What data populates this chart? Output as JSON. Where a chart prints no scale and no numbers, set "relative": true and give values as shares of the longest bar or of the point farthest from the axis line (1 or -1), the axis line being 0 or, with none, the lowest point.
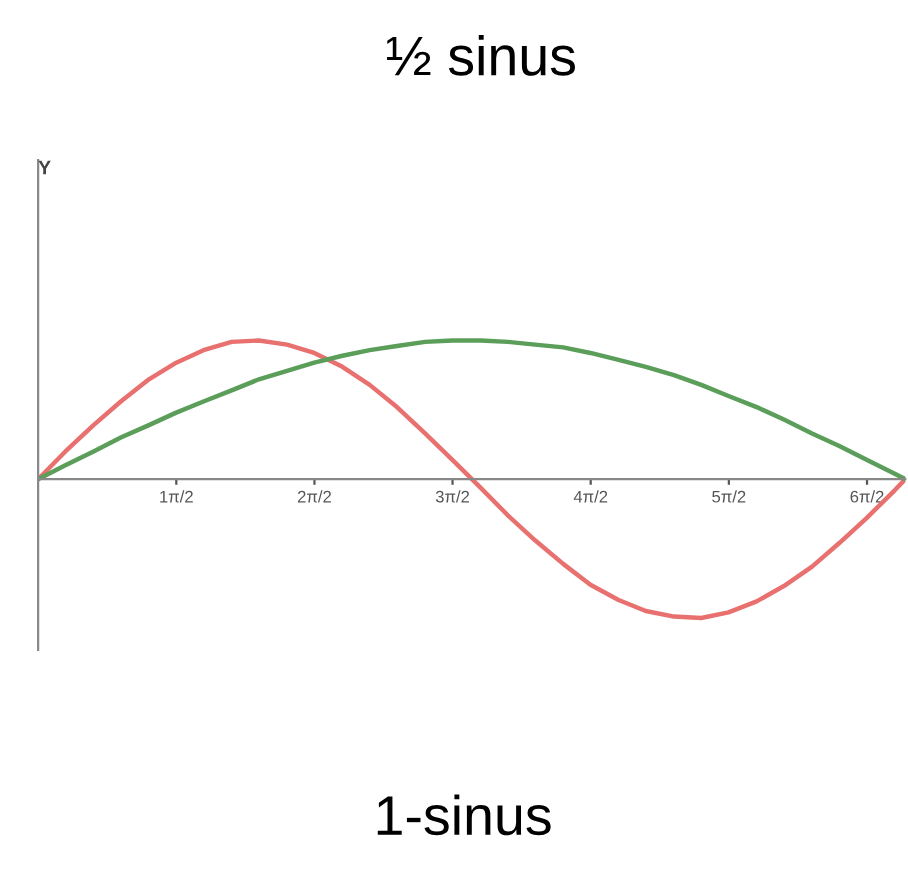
{
  "chart_data": {
    "type": "line",
    "title": "½ sinus",
    "relative": true,
    "annotations": [
      "Y",
      "1-sinus"
    ],
    "x": [
      0,
      0.31,
      0.63,
      0.94,
      1.26,
      1.57,
      1.88,
      2.2,
      2.51,
      2.83,
      3.14,
      3.46,
      3.77,
      4.08,
      4.4,
      4.71,
      5.03,
      5.34,
      5.65,
      5.97,
      6.28,
      6.6,
      6.91,
      7.23,
      7.54,
      7.85,
      8.17,
      8.48,
      8.8,
      9.11,
      9.42,
      9.74,
      9.86
    ],
    "xlim": [
      0,
      9.86
    ],
    "xticks": [
      {
        "value": 1.571,
        "label": "1π/2"
      },
      {
        "value": 3.142,
        "label": "2π/2"
      },
      {
        "value": 4.712,
        "label": "3π/2"
      },
      {
        "value": 6.283,
        "label": "4π/2"
      },
      {
        "value": 7.854,
        "label": "5π/2"
      },
      {
        "value": 9.425,
        "label": "6π/2"
      }
    ],
    "series": [
      {
        "color": "#e8706f",
        "values": [
          0,
          0.2,
          0.39,
          0.56,
          0.72,
          0.84,
          0.93,
          0.99,
          1.0,
          0.97,
          0.91,
          0.81,
          0.68,
          0.52,
          0.33,
          0.14,
          -0.06,
          -0.26,
          -0.44,
          -0.61,
          -0.76,
          -0.87,
          -0.95,
          -0.99,
          -1.0,
          -0.96,
          -0.88,
          -0.77,
          -0.63,
          -0.46,
          -0.28,
          -0.08,
          0
        ]
      },
      {
        "color": "#5a9e5a",
        "values": [
          0,
          0.1,
          0.2,
          0.3,
          0.39,
          0.48,
          0.56,
          0.64,
          0.72,
          0.78,
          0.84,
          0.89,
          0.93,
          0.96,
          0.99,
          1.0,
          1.0,
          0.99,
          0.97,
          0.95,
          0.91,
          0.86,
          0.81,
          0.75,
          0.68,
          0.6,
          0.52,
          0.43,
          0.33,
          0.24,
          0.14,
          0.04,
          0
        ]
      }
    ],
    "grid": false,
    "legend": false,
    "marker": "none",
    "line_style": "solid"
  }
}
